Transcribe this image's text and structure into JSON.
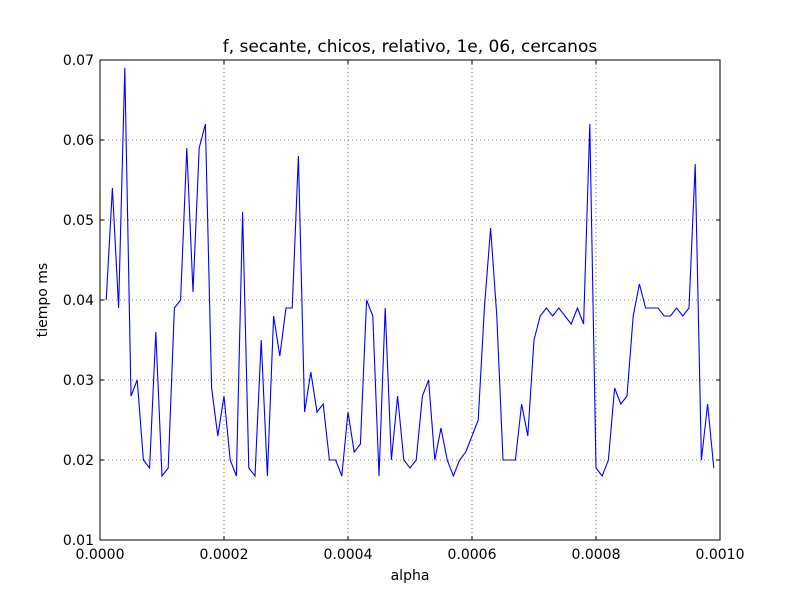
{
  "chart_data": {
    "type": "line",
    "title": "f, secante, chicos, relativo, 1e, 06, cercanos",
    "xlabel": "alpha",
    "ylabel": "tiempo ms",
    "xlim": [
      0.0,
      0.001
    ],
    "ylim": [
      0.01,
      0.07
    ],
    "grid": true,
    "x_ticks": [
      0.0,
      0.0002,
      0.0004,
      0.0006,
      0.0008,
      0.001
    ],
    "x_tick_labels": [
      "0.0000",
      "0.0002",
      "0.0004",
      "0.0006",
      "0.0008",
      "0.0010"
    ],
    "y_ticks": [
      0.01,
      0.02,
      0.03,
      0.04,
      0.05,
      0.06,
      0.07
    ],
    "y_tick_labels": [
      "0.01",
      "0.02",
      "0.03",
      "0.04",
      "0.05",
      "0.06",
      "0.07"
    ],
    "series": [
      {
        "color": "#0000ff",
        "x": [
          1e-05,
          2e-05,
          3e-05,
          4e-05,
          5e-05,
          6e-05,
          7e-05,
          8e-05,
          9e-05,
          0.0001,
          0.00011,
          0.00012,
          0.00013,
          0.00014,
          0.00015,
          0.00016,
          0.00017,
          0.00018,
          0.00019,
          0.0002,
          0.00021,
          0.00022,
          0.00023,
          0.00024,
          0.00025,
          0.00026,
          0.00027,
          0.00028,
          0.00029,
          0.0003,
          0.00031,
          0.00032,
          0.00033,
          0.00034,
          0.00035,
          0.00036,
          0.00037,
          0.00038,
          0.00039,
          0.0004,
          0.00041,
          0.00042,
          0.00043,
          0.00044,
          0.00045,
          0.00046,
          0.00047,
          0.00048,
          0.00049,
          0.0005,
          0.00051,
          0.00052,
          0.00053,
          0.00054,
          0.00055,
          0.00056,
          0.00057,
          0.00058,
          0.00059,
          0.0006,
          0.00061,
          0.00062,
          0.00063,
          0.00064,
          0.00065,
          0.00066,
          0.00067,
          0.00068,
          0.00069,
          0.0007,
          0.00071,
          0.00072,
          0.00073,
          0.00074,
          0.00075,
          0.00076,
          0.00077,
          0.00078,
          0.00079,
          0.0008,
          0.00081,
          0.00082,
          0.00083,
          0.00084,
          0.00085,
          0.00086,
          0.00087,
          0.00088,
          0.00089,
          0.0009,
          0.00091,
          0.00092,
          0.00093,
          0.00094,
          0.00095,
          0.00096,
          0.00097,
          0.00098,
          0.00099
        ],
        "y": [
          0.04,
          0.054,
          0.039,
          0.069,
          0.028,
          0.03,
          0.02,
          0.019,
          0.036,
          0.018,
          0.019,
          0.039,
          0.04,
          0.059,
          0.041,
          0.059,
          0.062,
          0.029,
          0.023,
          0.028,
          0.02,
          0.018,
          0.051,
          0.019,
          0.018,
          0.035,
          0.018,
          0.038,
          0.033,
          0.039,
          0.039,
          0.058,
          0.026,
          0.031,
          0.026,
          0.027,
          0.02,
          0.02,
          0.018,
          0.026,
          0.021,
          0.022,
          0.04,
          0.038,
          0.018,
          0.039,
          0.02,
          0.028,
          0.02,
          0.019,
          0.02,
          0.028,
          0.03,
          0.02,
          0.024,
          0.02,
          0.018,
          0.02,
          0.021,
          0.023,
          0.025,
          0.039,
          0.049,
          0.038,
          0.02,
          0.02,
          0.02,
          0.027,
          0.023,
          0.035,
          0.038,
          0.039,
          0.038,
          0.039,
          0.038,
          0.037,
          0.039,
          0.037,
          0.062,
          0.019,
          0.018,
          0.02,
          0.029,
          0.027,
          0.028,
          0.038,
          0.042,
          0.039,
          0.039,
          0.039,
          0.038,
          0.038,
          0.039,
          0.038,
          0.039,
          0.057,
          0.02,
          0.027,
          0.019
        ]
      }
    ]
  }
}
